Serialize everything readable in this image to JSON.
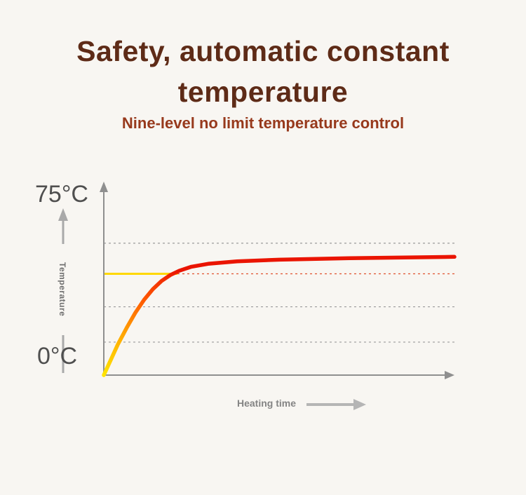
{
  "header": {
    "title_line1": "Safety, automatic constant",
    "title_line2": "temperature",
    "subtitle": "Nine-level no limit temperature control"
  },
  "colors": {
    "bg": "#f8f6f2",
    "title": "#5e2b17",
    "subtitle": "#97391c",
    "axis": "#8f8f8f",
    "axis_label": "#4f4f4f",
    "y_axis_title": "#6f6f6f",
    "x_axis_title": "#848484",
    "left_arrow": "#a9a9a9",
    "bottom_arrow": "#b5b5b5"
  },
  "chart_data": {
    "type": "line",
    "title": "",
    "xlabel": "Heating time",
    "ylabel": "Temperature",
    "y_axis_labels": {
      "top": "75°C",
      "bottom": "0°C"
    },
    "ylim": [
      0,
      75
    ],
    "grid": "dashed-horizontal",
    "legend": "none",
    "gridlines": [
      {
        "value": 56,
        "style": "dashed",
        "color": "#9a9a9a"
      },
      {
        "value": 43,
        "style": "dashed",
        "color": "#e0512d"
      },
      {
        "value": 29,
        "style": "dashed",
        "color": "#9a9a9a"
      },
      {
        "value": 14,
        "style": "dashed",
        "color": "#9a9a9a"
      }
    ],
    "target_line": {
      "value": 43,
      "x_start": 0,
      "x_end": 0.21,
      "style": "solid",
      "color": "#ffd800",
      "width": 3
    },
    "curve_gradient": [
      "#ffe400",
      "#ffb000",
      "#ff5a00",
      "#ea1400"
    ],
    "series": [
      {
        "name": "heating-curve",
        "x": [
          0,
          0.02,
          0.04,
          0.065,
          0.09,
          0.115,
          0.14,
          0.165,
          0.19,
          0.215,
          0.25,
          0.3,
          0.38,
          0.5,
          0.7,
          1.0
        ],
        "y": [
          0,
          6.5,
          13,
          20,
          26.5,
          32,
          36.5,
          40,
          42.5,
          44.3,
          46,
          47.3,
          48.3,
          49,
          49.6,
          50.2
        ]
      }
    ]
  }
}
